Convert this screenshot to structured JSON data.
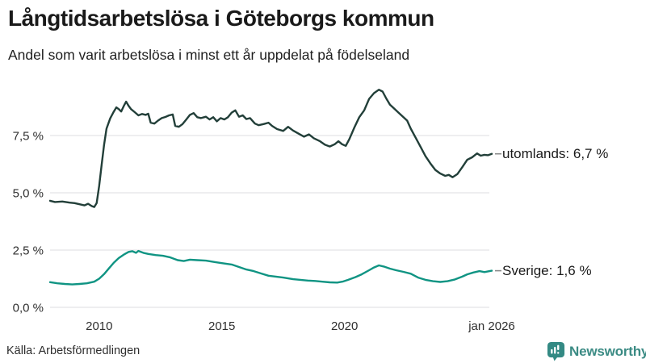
{
  "header": {
    "title": "Långtidsarbetslösa i Göteborgs kommun",
    "subtitle": "Andel som varit arbetslösa i minst ett år uppdelat på födelseland"
  },
  "footer": {
    "source": "Källa: Arbetsförmedlingen",
    "brand": "Newsworthy",
    "brand_icon": "newsworthy-speech-bubble-barchart-icon"
  },
  "colors": {
    "title_text": "#1a1a1a",
    "tick_text": "#2f2f2f",
    "grid": "#e3e3e6",
    "leader": "#8a8a8a",
    "brand": "#348a84",
    "series_utomlands": "#223f39",
    "series_sverige": "#109483"
  },
  "chart_data": {
    "type": "line",
    "title": "Långtidsarbetslösa i Göteborgs kommun",
    "subtitle": "Andel som varit arbetslösa i minst ett år uppdelat på födelseland",
    "xlabel": "",
    "ylabel": "",
    "grid": "horizontal",
    "legend_position": "right-of-line-ends",
    "xlim": [
      2008,
      2026
    ],
    "ylim": [
      0,
      10
    ],
    "x_ticks": [
      {
        "v": 2010,
        "label": "2010"
      },
      {
        "v": 2015,
        "label": "2015"
      },
      {
        "v": 2020,
        "label": "2020"
      },
      {
        "v": 2026,
        "label": "jan 2026"
      }
    ],
    "y_ticks": [
      {
        "v": 0,
        "label": "0,0 %"
      },
      {
        "v": 2.5,
        "label": "2,5 %"
      },
      {
        "v": 5,
        "label": "5,0 %"
      },
      {
        "v": 7.5,
        "label": "7,5 %"
      }
    ],
    "series": [
      {
        "name": "utomlands",
        "label": "utomlands: 6,7 %",
        "last_value": "6,7 %",
        "color": "#223f39",
        "points": [
          [
            2008.0,
            4.65
          ],
          [
            2008.2,
            4.6
          ],
          [
            2008.5,
            4.62
          ],
          [
            2008.8,
            4.57
          ],
          [
            2009.0,
            4.55
          ],
          [
            2009.2,
            4.5
          ],
          [
            2009.4,
            4.45
          ],
          [
            2009.55,
            4.52
          ],
          [
            2009.7,
            4.42
          ],
          [
            2009.8,
            4.38
          ],
          [
            2009.9,
            4.55
          ],
          [
            2010.0,
            5.3
          ],
          [
            2010.1,
            6.2
          ],
          [
            2010.2,
            7.1
          ],
          [
            2010.3,
            7.8
          ],
          [
            2010.45,
            8.25
          ],
          [
            2010.6,
            8.55
          ],
          [
            2010.7,
            8.73
          ],
          [
            2010.8,
            8.65
          ],
          [
            2010.9,
            8.55
          ],
          [
            2011.0,
            8.78
          ],
          [
            2011.1,
            8.98
          ],
          [
            2011.2,
            8.8
          ],
          [
            2011.3,
            8.65
          ],
          [
            2011.45,
            8.52
          ],
          [
            2011.6,
            8.38
          ],
          [
            2011.75,
            8.44
          ],
          [
            2011.9,
            8.4
          ],
          [
            2012.0,
            8.45
          ],
          [
            2012.1,
            8.06
          ],
          [
            2012.25,
            8.02
          ],
          [
            2012.4,
            8.15
          ],
          [
            2012.55,
            8.26
          ],
          [
            2012.7,
            8.31
          ],
          [
            2012.85,
            8.38
          ],
          [
            2013.0,
            8.42
          ],
          [
            2013.1,
            7.92
          ],
          [
            2013.25,
            7.88
          ],
          [
            2013.4,
            8.0
          ],
          [
            2013.55,
            8.2
          ],
          [
            2013.7,
            8.4
          ],
          [
            2013.85,
            8.48
          ],
          [
            2014.0,
            8.3
          ],
          [
            2014.15,
            8.26
          ],
          [
            2014.35,
            8.32
          ],
          [
            2014.5,
            8.2
          ],
          [
            2014.65,
            8.3
          ],
          [
            2014.8,
            8.12
          ],
          [
            2014.95,
            8.26
          ],
          [
            2015.1,
            8.2
          ],
          [
            2015.25,
            8.3
          ],
          [
            2015.4,
            8.5
          ],
          [
            2015.55,
            8.6
          ],
          [
            2015.7,
            8.32
          ],
          [
            2015.85,
            8.38
          ],
          [
            2016.0,
            8.22
          ],
          [
            2016.15,
            8.26
          ],
          [
            2016.35,
            8.02
          ],
          [
            2016.5,
            7.95
          ],
          [
            2016.7,
            8.0
          ],
          [
            2016.9,
            8.06
          ],
          [
            2017.05,
            7.92
          ],
          [
            2017.25,
            7.78
          ],
          [
            2017.5,
            7.7
          ],
          [
            2017.7,
            7.88
          ],
          [
            2017.9,
            7.72
          ],
          [
            2018.1,
            7.6
          ],
          [
            2018.35,
            7.45
          ],
          [
            2018.55,
            7.55
          ],
          [
            2018.75,
            7.38
          ],
          [
            2019.0,
            7.25
          ],
          [
            2019.2,
            7.1
          ],
          [
            2019.4,
            7.02
          ],
          [
            2019.6,
            7.12
          ],
          [
            2019.75,
            7.25
          ],
          [
            2019.9,
            7.12
          ],
          [
            2020.05,
            7.05
          ],
          [
            2020.2,
            7.35
          ],
          [
            2020.4,
            7.85
          ],
          [
            2020.6,
            8.3
          ],
          [
            2020.8,
            8.6
          ],
          [
            2021.0,
            9.1
          ],
          [
            2021.2,
            9.35
          ],
          [
            2021.4,
            9.5
          ],
          [
            2021.55,
            9.42
          ],
          [
            2021.7,
            9.12
          ],
          [
            2021.85,
            8.85
          ],
          [
            2022.0,
            8.7
          ],
          [
            2022.2,
            8.5
          ],
          [
            2022.4,
            8.3
          ],
          [
            2022.55,
            8.15
          ],
          [
            2022.7,
            7.8
          ],
          [
            2022.9,
            7.4
          ],
          [
            2023.1,
            7.0
          ],
          [
            2023.3,
            6.6
          ],
          [
            2023.5,
            6.28
          ],
          [
            2023.7,
            6.0
          ],
          [
            2023.9,
            5.84
          ],
          [
            2024.1,
            5.74
          ],
          [
            2024.25,
            5.78
          ],
          [
            2024.4,
            5.68
          ],
          [
            2024.6,
            5.82
          ],
          [
            2024.8,
            6.12
          ],
          [
            2025.0,
            6.44
          ],
          [
            2025.2,
            6.55
          ],
          [
            2025.4,
            6.72
          ],
          [
            2025.55,
            6.62
          ],
          [
            2025.7,
            6.66
          ],
          [
            2025.85,
            6.64
          ],
          [
            2026.0,
            6.7
          ]
        ]
      },
      {
        "name": "sverige",
        "label": "Sverige: 1,6 %",
        "last_value": "1,6 %",
        "color": "#109483",
        "points": [
          [
            2008.0,
            1.1
          ],
          [
            2008.3,
            1.05
          ],
          [
            2008.6,
            1.02
          ],
          [
            2008.9,
            1.0
          ],
          [
            2009.2,
            1.02
          ],
          [
            2009.5,
            1.05
          ],
          [
            2009.8,
            1.12
          ],
          [
            2010.0,
            1.25
          ],
          [
            2010.2,
            1.45
          ],
          [
            2010.4,
            1.7
          ],
          [
            2010.6,
            1.95
          ],
          [
            2010.8,
            2.15
          ],
          [
            2011.0,
            2.3
          ],
          [
            2011.2,
            2.42
          ],
          [
            2011.35,
            2.45
          ],
          [
            2011.5,
            2.38
          ],
          [
            2011.6,
            2.46
          ],
          [
            2011.8,
            2.38
          ],
          [
            2012.0,
            2.33
          ],
          [
            2012.3,
            2.28
          ],
          [
            2012.6,
            2.25
          ],
          [
            2012.9,
            2.18
          ],
          [
            2013.2,
            2.06
          ],
          [
            2013.45,
            2.02
          ],
          [
            2013.7,
            2.08
          ],
          [
            2014.0,
            2.06
          ],
          [
            2014.35,
            2.04
          ],
          [
            2014.7,
            1.98
          ],
          [
            2015.0,
            1.93
          ],
          [
            2015.4,
            1.87
          ],
          [
            2015.7,
            1.76
          ],
          [
            2016.0,
            1.65
          ],
          [
            2016.3,
            1.58
          ],
          [
            2016.6,
            1.48
          ],
          [
            2016.9,
            1.38
          ],
          [
            2017.2,
            1.34
          ],
          [
            2017.5,
            1.3
          ],
          [
            2017.9,
            1.23
          ],
          [
            2018.2,
            1.2
          ],
          [
            2018.5,
            1.17
          ],
          [
            2018.8,
            1.15
          ],
          [
            2019.1,
            1.12
          ],
          [
            2019.4,
            1.09
          ],
          [
            2019.7,
            1.08
          ],
          [
            2019.95,
            1.13
          ],
          [
            2020.15,
            1.2
          ],
          [
            2020.45,
            1.32
          ],
          [
            2020.7,
            1.44
          ],
          [
            2021.0,
            1.62
          ],
          [
            2021.2,
            1.74
          ],
          [
            2021.4,
            1.83
          ],
          [
            2021.6,
            1.78
          ],
          [
            2021.85,
            1.69
          ],
          [
            2022.1,
            1.62
          ],
          [
            2022.4,
            1.55
          ],
          [
            2022.7,
            1.47
          ],
          [
            2023.0,
            1.3
          ],
          [
            2023.3,
            1.2
          ],
          [
            2023.6,
            1.14
          ],
          [
            2023.9,
            1.11
          ],
          [
            2024.2,
            1.14
          ],
          [
            2024.5,
            1.22
          ],
          [
            2024.8,
            1.34
          ],
          [
            2025.0,
            1.44
          ],
          [
            2025.25,
            1.52
          ],
          [
            2025.5,
            1.58
          ],
          [
            2025.7,
            1.54
          ],
          [
            2025.85,
            1.57
          ],
          [
            2026.0,
            1.6
          ]
        ]
      }
    ]
  }
}
